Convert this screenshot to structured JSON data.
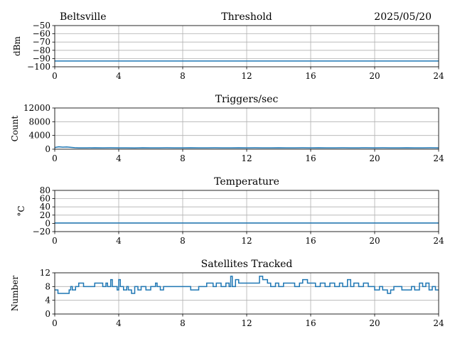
{
  "header": {
    "location": "Beltsville",
    "date": "2025/05/20"
  },
  "colors": {
    "line": "#1f77b4",
    "grid": "#b0b0b0",
    "axes": "#000000"
  },
  "chart_data": [
    {
      "id": "threshold",
      "type": "line",
      "title": "Threshold",
      "xlabel": "",
      "ylabel": "dBm",
      "xlim": [
        0,
        24
      ],
      "ylim": [
        -100,
        -50
      ],
      "xticks": [
        0,
        4,
        8,
        12,
        16,
        20,
        24
      ],
      "yticks": [
        -100,
        -90,
        -80,
        -70,
        -60,
        -50
      ],
      "ytick_labels": [
        "−100",
        "−90",
        "−80",
        "−70",
        "−60",
        "−50"
      ],
      "grid": true,
      "series": [
        {
          "x": [
            0,
            24
          ],
          "y": [
            -93,
            -93
          ]
        }
      ]
    },
    {
      "id": "triggers",
      "type": "line",
      "title": "Triggers/sec",
      "xlabel": "",
      "ylabel": "Count",
      "xlim": [
        0,
        24
      ],
      "ylim": [
        0,
        12000
      ],
      "xticks": [
        0,
        4,
        8,
        12,
        16,
        20,
        24
      ],
      "yticks": [
        0,
        4000,
        8000,
        12000
      ],
      "ytick_labels": [
        "0",
        "4000",
        "8000",
        "12000"
      ],
      "grid": true,
      "series": [
        {
          "x": [
            0,
            0.25,
            0.5,
            0.75,
            1,
            1.25,
            1.5,
            2,
            2.5,
            3,
            3.5,
            4,
            4.5,
            5,
            5.5,
            6,
            6.5,
            7,
            7.5,
            8,
            8.5,
            9,
            9.5,
            10,
            10.5,
            11,
            11.5,
            12,
            12.5,
            13,
            13.5,
            14,
            14.5,
            15,
            15.5,
            16,
            16.5,
            17,
            17.5,
            18,
            18.5,
            19,
            19.5,
            20,
            20.5,
            21,
            21.5,
            22,
            22.5,
            23,
            23.5,
            24
          ],
          "y": [
            500,
            700,
            600,
            650,
            550,
            450,
            400,
            380,
            420,
            390,
            410,
            380,
            400,
            370,
            420,
            390,
            380,
            410,
            400,
            380,
            420,
            390,
            400,
            410,
            380,
            400,
            420,
            390,
            410,
            400,
            380,
            420,
            390,
            400,
            410,
            380,
            420,
            400,
            390,
            410,
            380,
            400,
            420,
            390,
            410,
            400,
            380,
            420,
            390,
            400,
            410,
            400
          ]
        }
      ]
    },
    {
      "id": "temperature",
      "type": "line",
      "title": "Temperature",
      "xlabel": "",
      "ylabel": "°C",
      "xlim": [
        0,
        24
      ],
      "ylim": [
        -20,
        80
      ],
      "xticks": [
        0,
        4,
        8,
        12,
        16,
        20,
        24
      ],
      "yticks": [
        -20,
        0,
        20,
        40,
        60,
        80
      ],
      "ytick_labels": [
        "−20",
        "0",
        "20",
        "40",
        "60",
        "80"
      ],
      "grid": true,
      "series": [
        {
          "x": [
            0,
            24
          ],
          "y": [
            1,
            1
          ]
        }
      ]
    },
    {
      "id": "satellites",
      "type": "line",
      "title": "Satellites Tracked",
      "xlabel": "",
      "ylabel": "Number",
      "xlim": [
        0,
        24
      ],
      "ylim": [
        0,
        12
      ],
      "xticks": [
        0,
        4,
        8,
        12,
        16,
        20,
        24
      ],
      "yticks": [
        0,
        4,
        8,
        12
      ],
      "ytick_labels": [
        "0",
        "4",
        "8",
        "12"
      ],
      "grid": true,
      "series": [
        {
          "step": true,
          "x": [
            0,
            0.2,
            0.8,
            0.9,
            1.0,
            1.1,
            1.3,
            1.5,
            1.8,
            2.0,
            2.5,
            3.0,
            3.2,
            3.3,
            3.5,
            3.6,
            3.9,
            4.0,
            4.1,
            4.3,
            4.5,
            4.6,
            4.8,
            5.0,
            5.2,
            5.4,
            5.7,
            6.0,
            6.3,
            6.4,
            6.6,
            6.8,
            7.0,
            7.3,
            7.6,
            8.0,
            8.5,
            9.0,
            9.3,
            9.5,
            9.9,
            10.1,
            10.4,
            10.7,
            10.9,
            11.0,
            11.1,
            11.3,
            11.5,
            11.8,
            12.0,
            12.3,
            12.6,
            12.8,
            13.0,
            13.3,
            13.5,
            13.8,
            14.0,
            14.3,
            14.6,
            15.0,
            15.3,
            15.5,
            15.8,
            16.0,
            16.3,
            16.6,
            16.9,
            17.2,
            17.5,
            17.8,
            18.0,
            18.3,
            18.5,
            18.7,
            19.0,
            19.3,
            19.6,
            20.0,
            20.3,
            20.5,
            20.8,
            21.0,
            21.2,
            21.5,
            21.7,
            22.0,
            22.3,
            22.5,
            22.8,
            23.0,
            23.2,
            23.4,
            23.6,
            23.8,
            24
          ],
          "y": [
            7,
            6,
            6,
            7,
            8,
            7,
            8,
            9,
            8,
            8,
            9,
            8,
            9,
            8,
            10,
            8,
            7,
            10,
            8,
            7,
            8,
            7,
            6,
            8,
            7,
            8,
            7,
            8,
            9,
            8,
            7,
            8,
            8,
            8,
            8,
            8,
            7,
            8,
            8,
            9,
            8,
            9,
            8,
            9,
            8,
            11,
            8,
            10,
            9,
            9,
            9,
            9,
            9,
            11,
            10,
            9,
            8,
            9,
            8,
            9,
            9,
            8,
            9,
            10,
            9,
            9,
            8,
            9,
            8,
            9,
            8,
            9,
            8,
            10,
            8,
            9,
            8,
            9,
            8,
            7,
            8,
            7,
            6,
            7,
            8,
            8,
            7,
            7,
            8,
            7,
            9,
            8,
            9,
            7,
            8,
            7,
            7
          ]
        }
      ]
    }
  ]
}
